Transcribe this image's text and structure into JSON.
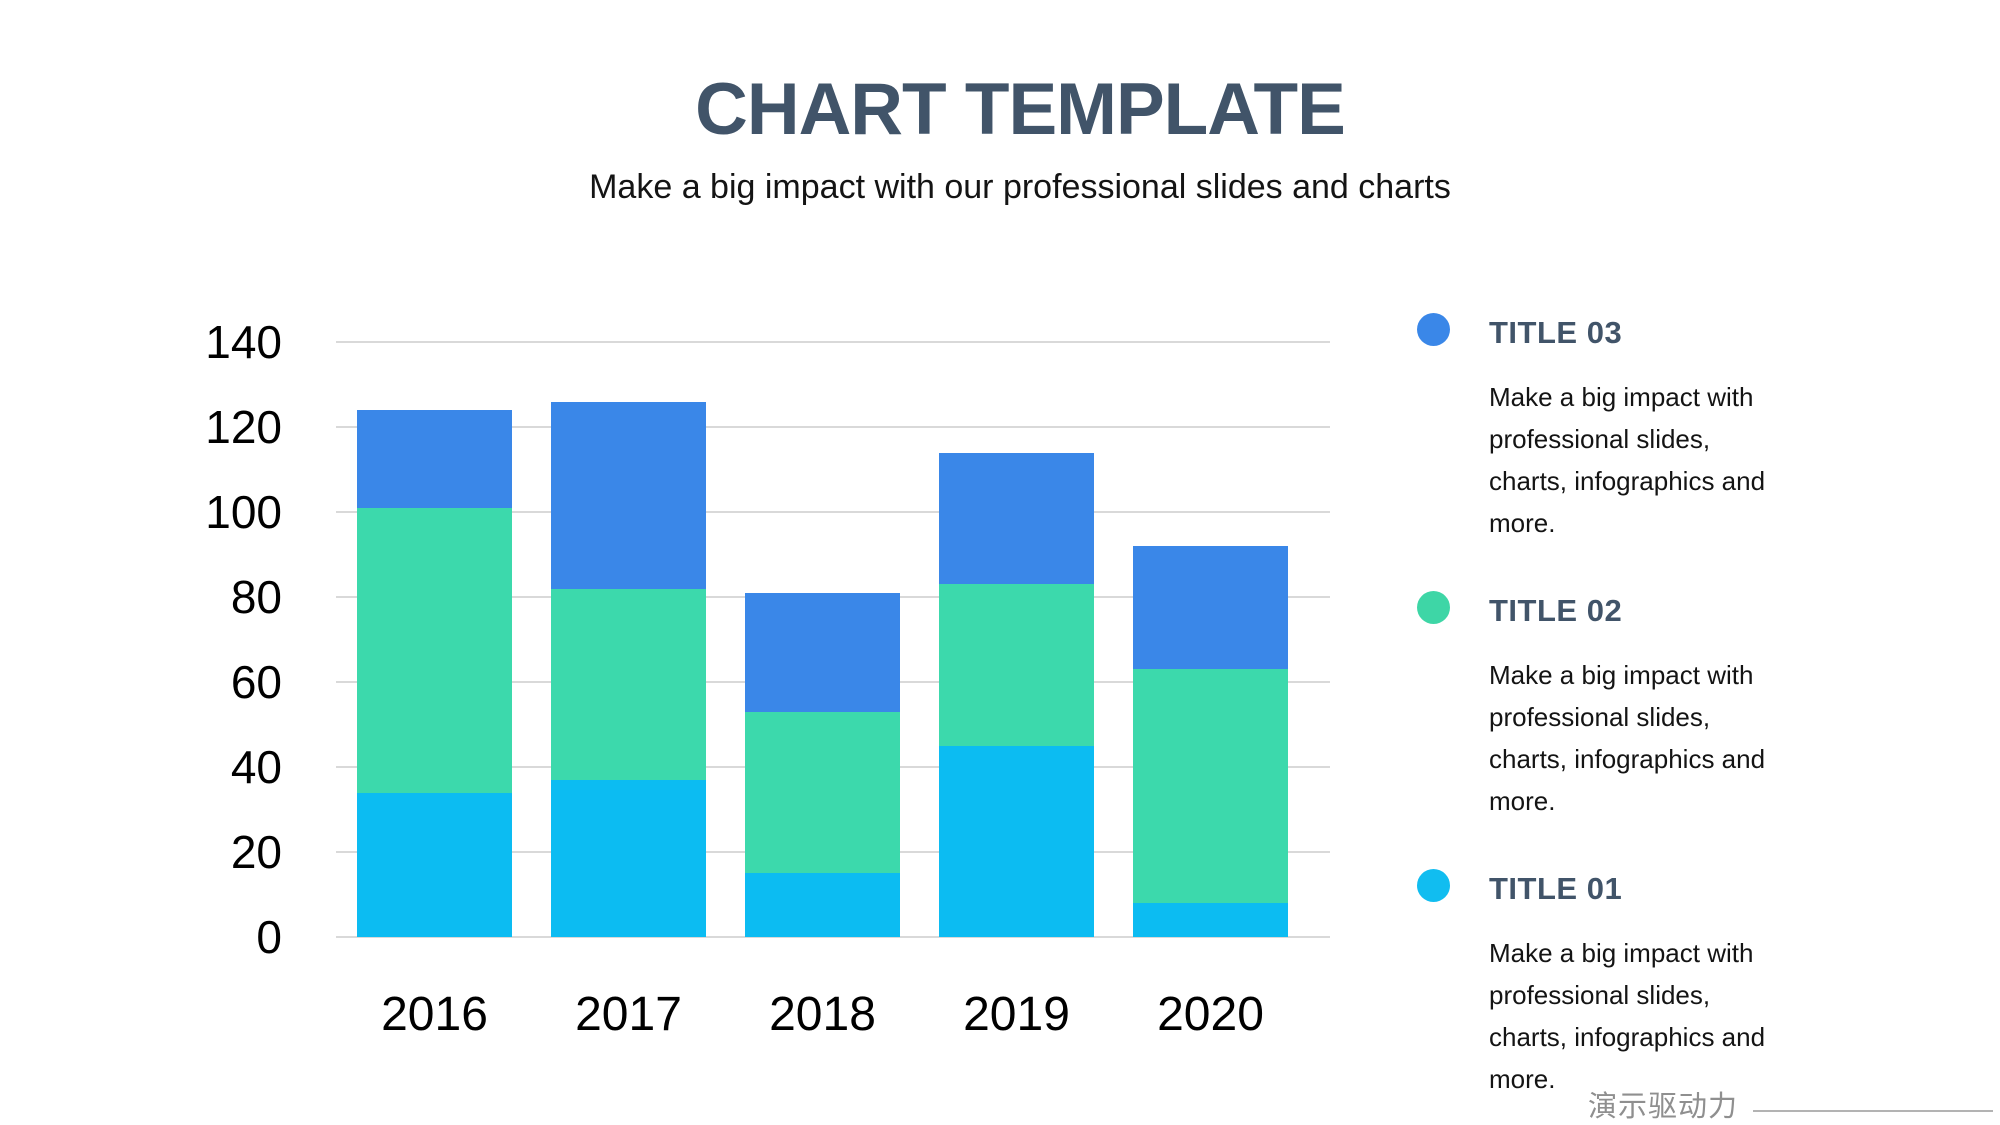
{
  "slide": {
    "title": "CHART TEMPLATE",
    "subtitle": "Make a big impact with our professional slides and charts"
  },
  "chart_data": {
    "type": "bar",
    "stacked": true,
    "title": "",
    "categories": [
      "2016",
      "2017",
      "2018",
      "2019",
      "2020"
    ],
    "series": [
      {
        "name": "TITLE 01",
        "color": "#0cbcf2",
        "values": [
          34,
          37,
          15,
          45,
          8
        ]
      },
      {
        "name": "TITLE 02",
        "color": "#3cd9ac",
        "values": [
          67,
          45,
          38,
          38,
          55
        ]
      },
      {
        "name": "TITLE 03",
        "color": "#3a87e8",
        "values": [
          23,
          44,
          28,
          31,
          29
        ]
      }
    ],
    "stack_totals": [
      124,
      126,
      81,
      114,
      92
    ],
    "xlabel": "",
    "ylabel": "",
    "ylim": [
      0,
      140
    ],
    "ytick_step": 20,
    "yticks": [
      0,
      20,
      40,
      60,
      80,
      100,
      120,
      140
    ],
    "grid": true,
    "gridline_color": "#d9d9d9",
    "legend_position": "right"
  },
  "legend": {
    "items": [
      {
        "label": "TITLE 03",
        "color": "#3a87e8",
        "desc_lines": [
          "Make a big impact with",
          "professional slides,",
          "charts, infographics and",
          "more."
        ]
      },
      {
        "label": "TITLE 02",
        "color": "#3ed6a6",
        "desc_lines": [
          "Make a big impact with",
          "professional slides,",
          "charts, infographics and",
          "more."
        ]
      },
      {
        "label": "TITLE 01",
        "color": "#11bdf0",
        "desc_lines": [
          "Make a big impact with",
          "professional slides,",
          "charts, infographics and",
          "more."
        ]
      }
    ]
  },
  "footer": {
    "watermark": "演示驱动力"
  },
  "theme": {
    "background": "#ffffff",
    "heading_color": "#415469",
    "text_color": "#141414",
    "axis_text_color": "#000000",
    "grid_color": "#d9d9d9",
    "watermark_color": "#8f8f8f",
    "divider_color": "#b3b3b3"
  }
}
